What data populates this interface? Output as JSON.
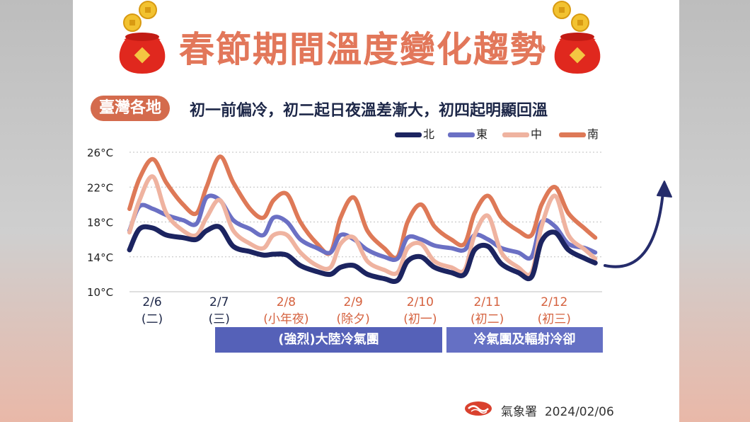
{
  "title": "春節期間溫度變化趨勢",
  "region_tag": "臺灣各地",
  "subtitle": "初一前偏冷，初二起日夜溫差漸大，初四起明顯回溫",
  "legend": [
    {
      "label": "北",
      "color": "#1c2460"
    },
    {
      "label": "東",
      "color": "#6b70c4"
    },
    {
      "label": "中",
      "color": "#efb3a0"
    },
    {
      "label": "南",
      "color": "#de7957"
    }
  ],
  "bars": [
    {
      "label": "(強烈)大陸冷氣團",
      "color": "#5561b8"
    },
    {
      "label": "冷氣團及輻射冷卻",
      "color": "#6570c4"
    }
  ],
  "footer": {
    "source": "氣象署",
    "date": "2024/02/06"
  },
  "trend_arrow_color": "#252c6b",
  "chart_data": {
    "type": "line",
    "ylim": [
      10,
      26
    ],
    "yticks": [
      "26°C",
      "22°C",
      "18°C",
      "14°C",
      "10°C"
    ],
    "ytick_values": [
      26,
      22,
      18,
      14,
      10
    ],
    "x_labels": [
      {
        "date": "2/6",
        "day": "(二)",
        "color": "#1d2748"
      },
      {
        "date": "2/7",
        "day": "(三)",
        "color": "#1d2748"
      },
      {
        "date": "2/8",
        "day": "(小年夜)",
        "color": "#d5623f"
      },
      {
        "date": "2/9",
        "day": "(除夕)",
        "color": "#d5623f"
      },
      {
        "date": "2/10",
        "day": "(初一)",
        "color": "#d5623f"
      },
      {
        "date": "2/11",
        "day": "(初二)",
        "color": "#d5623f"
      },
      {
        "date": "2/12",
        "day": "(初三)",
        "color": "#d5623f"
      }
    ],
    "x_range": [
      0,
      7
    ],
    "series": [
      {
        "name": "南",
        "color": "#de7957",
        "x": [
          0,
          0.15,
          0.35,
          0.55,
          0.8,
          1.0,
          1.15,
          1.35,
          1.55,
          1.8,
          2.0,
          2.15,
          2.35,
          2.55,
          2.8,
          3.0,
          3.15,
          3.35,
          3.55,
          3.8,
          4.0,
          4.15,
          4.35,
          4.55,
          4.8,
          5.0,
          5.15,
          5.35,
          5.55,
          5.8,
          6.0,
          6.15,
          6.35,
          6.55,
          6.8,
          6.95
        ],
        "y": [
          19.5,
          23.0,
          25.2,
          22.5,
          20.0,
          19.0,
          22.0,
          25.5,
          22.5,
          19.5,
          18.5,
          20.5,
          21.2,
          18.0,
          15.5,
          14.5,
          18.5,
          20.8,
          17.0,
          15.0,
          14.0,
          18.0,
          20.0,
          17.5,
          16.0,
          15.5,
          19.0,
          21.0,
          18.5,
          17.0,
          16.5,
          20.0,
          22.0,
          19.0,
          17.2,
          16.2
        ]
      },
      {
        "name": "東",
        "color": "#6b70c4",
        "x": [
          0,
          0.15,
          0.35,
          0.55,
          0.8,
          1.0,
          1.15,
          1.35,
          1.55,
          1.8,
          2.0,
          2.15,
          2.35,
          2.55,
          2.8,
          3.0,
          3.15,
          3.35,
          3.55,
          3.8,
          4.0,
          4.15,
          4.35,
          4.55,
          4.8,
          5.0,
          5.15,
          5.35,
          5.55,
          5.8,
          6.0,
          6.15,
          6.35,
          6.55,
          6.8,
          6.95
        ],
        "y": [
          17.0,
          19.8,
          19.5,
          18.8,
          18.2,
          17.8,
          20.8,
          20.5,
          18.2,
          17.2,
          16.5,
          18.5,
          18.0,
          16.0,
          15.0,
          14.5,
          16.5,
          16.0,
          14.8,
          14.0,
          13.8,
          16.2,
          16.0,
          15.3,
          15.0,
          14.8,
          16.5,
          16.0,
          15.0,
          14.5,
          14.0,
          18.0,
          17.5,
          15.5,
          15.0,
          14.5
        ]
      },
      {
        "name": "中",
        "color": "#efb3a0",
        "x": [
          0,
          0.15,
          0.35,
          0.55,
          0.8,
          1.0,
          1.15,
          1.35,
          1.55,
          1.8,
          2.0,
          2.15,
          2.35,
          2.55,
          2.8,
          3.0,
          3.15,
          3.35,
          3.55,
          3.8,
          4.0,
          4.15,
          4.35,
          4.55,
          4.8,
          5.0,
          5.15,
          5.35,
          5.55,
          5.8,
          6.0,
          6.15,
          6.35,
          6.55,
          6.8,
          6.95
        ],
        "y": [
          16.8,
          20.5,
          23.2,
          19.0,
          17.0,
          16.5,
          18.5,
          20.5,
          17.0,
          15.5,
          15.0,
          16.5,
          16.5,
          14.5,
          13.0,
          12.8,
          15.5,
          16.2,
          13.5,
          12.5,
          12.2,
          15.0,
          15.5,
          13.5,
          12.8,
          12.5,
          16.5,
          18.7,
          14.5,
          12.8,
          12.2,
          17.5,
          21.0,
          16.5,
          14.8,
          13.8
        ]
      },
      {
        "name": "北",
        "color": "#1c2460",
        "x": [
          0,
          0.15,
          0.35,
          0.55,
          0.8,
          1.0,
          1.15,
          1.35,
          1.55,
          1.8,
          2.0,
          2.15,
          2.35,
          2.55,
          2.8,
          3.0,
          3.15,
          3.35,
          3.55,
          3.8,
          4.0,
          4.15,
          4.35,
          4.55,
          4.8,
          5.0,
          5.15,
          5.35,
          5.55,
          5.8,
          6.0,
          6.15,
          6.35,
          6.55,
          6.8,
          6.95
        ],
        "y": [
          14.8,
          17.2,
          17.3,
          16.5,
          16.2,
          16.0,
          17.0,
          17.4,
          15.2,
          14.6,
          14.2,
          14.3,
          14.2,
          13.0,
          12.3,
          12.0,
          12.8,
          13.0,
          12.0,
          11.5,
          11.3,
          13.5,
          14.0,
          12.8,
          12.2,
          12.0,
          14.8,
          15.2,
          13.2,
          12.2,
          11.7,
          15.8,
          16.8,
          14.8,
          13.8,
          13.3
        ]
      }
    ]
  }
}
